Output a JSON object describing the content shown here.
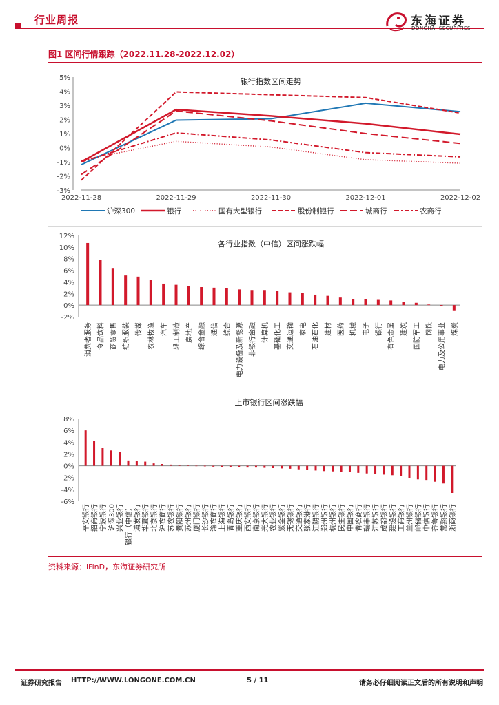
{
  "header": {
    "section": "行业周报",
    "logo_cn": "东海证券",
    "logo_en": "DONGHAI SECURITIES"
  },
  "figure": {
    "title": "图1  区间行情跟踪（2022.11.28-2022.12.02）"
  },
  "chart_data": [
    {
      "type": "line",
      "title": "银行指数区间走势",
      "categories": [
        "2022-11-28",
        "2022-11-29",
        "2022-11-30",
        "2022-12-01",
        "2022-12-02"
      ],
      "y_ticks": [
        "5%",
        "4%",
        "3%",
        "2%",
        "1%",
        "0%",
        "-1%",
        "-2%",
        "-3%"
      ],
      "ylim": [
        -3,
        5
      ],
      "series": [
        {
          "name": "沪深300",
          "color": "#1f77b4",
          "dash": "",
          "width": 2,
          "values": [
            -1.2,
            1.95,
            2.05,
            3.15,
            2.55
          ]
        },
        {
          "name": "银行",
          "color": "#d2192b",
          "dash": "",
          "width": 2.5,
          "values": [
            -1.0,
            2.7,
            2.25,
            1.7,
            0.95
          ]
        },
        {
          "name": "国有大型银行",
          "color": "#d2192b",
          "dash": "1,2.5",
          "width": 1.5,
          "values": [
            -0.9,
            0.45,
            0.05,
            -0.85,
            -1.1
          ]
        },
        {
          "name": "股份制银行",
          "color": "#d2192b",
          "dash": "6,3",
          "width": 2,
          "values": [
            -2.3,
            3.95,
            3.75,
            3.55,
            2.45
          ]
        },
        {
          "name": "城商行",
          "color": "#d2192b",
          "dash": "10,5",
          "width": 2,
          "values": [
            -1.9,
            2.6,
            1.9,
            1.0,
            0.3
          ]
        },
        {
          "name": "农商行",
          "color": "#d2192b",
          "dash": "7,3,2,3",
          "width": 2,
          "values": [
            -1.0,
            1.05,
            0.55,
            -0.35,
            -0.65
          ]
        }
      ]
    },
    {
      "type": "bar",
      "title": "各行业指数（中信）区间涨跌幅",
      "y_ticks": [
        "12%",
        "10%",
        "8%",
        "6%",
        "4%",
        "2%",
        "0%",
        "-2%"
      ],
      "ylim": [
        -2,
        12
      ],
      "categories": [
        "消费者服务",
        "食品饮料",
        "商贸零售",
        "纺织服装",
        "传媒",
        "农林牧渔",
        "汽车",
        "轻工制造",
        "房地产",
        "综合金融",
        "通信",
        "综合",
        "电力设备及新能源",
        "非银行金融",
        "计算机",
        "基础化工",
        "交通运输",
        "家电",
        "石油石化",
        "建材",
        "医药",
        "机械",
        "电子",
        "银行",
        "有色金属",
        "建筑",
        "国防军工",
        "钢铁",
        "电力及公用事业",
        "煤炭"
      ],
      "values": [
        10.7,
        7.8,
        6.4,
        5.1,
        4.9,
        4.3,
        3.7,
        3.5,
        3.3,
        3.1,
        3.0,
        2.9,
        2.7,
        2.6,
        2.6,
        2.4,
        2.2,
        2.1,
        1.8,
        1.6,
        1.3,
        1.0,
        1.0,
        0.9,
        0.8,
        0.5,
        0.4,
        0.1,
        -0.1,
        -0.9
      ],
      "color": "#d2192b"
    },
    {
      "type": "bar",
      "title": "上市银行区间涨跌幅",
      "y_ticks": [
        "8%",
        "6%",
        "4%",
        "2%",
        "0%",
        "-2%",
        "-4%",
        "-6%"
      ],
      "ylim": [
        -6,
        8
      ],
      "categories": [
        "平安银行",
        "招商银行",
        "宁波银行",
        "沪深300",
        "兴业银行",
        "银行（中信）",
        "浦发银行",
        "华夏银行",
        "北京银行",
        "沪农商行",
        "苏农银行",
        "贵阳银行",
        "苏州银行",
        "厦门银行",
        "长沙银行",
        "渝农商行",
        "上海银行",
        "青岛银行",
        "重庆银行",
        "西安银行",
        "南京银行",
        "光大银行",
        "农业银行",
        "紫金银行",
        "无锡银行",
        "交通银行",
        "张家港行",
        "江阴银行",
        "郑州银行",
        "杭州银行",
        "民生银行",
        "中国银行",
        "青农商行",
        "瑞丰银行",
        "江苏银行",
        "成都银行",
        "建设银行",
        "工商银行",
        "兰州银行",
        "邮储银行",
        "中信银行",
        "齐鲁银行",
        "常熟银行",
        "浙商银行"
      ],
      "values": [
        6.0,
        4.2,
        3.0,
        2.6,
        2.3,
        0.9,
        0.8,
        0.7,
        0.4,
        0.3,
        0.2,
        0.15,
        0.1,
        0.0,
        -0.1,
        -0.15,
        -0.2,
        -0.2,
        -0.25,
        -0.3,
        -0.3,
        -0.35,
        -0.4,
        -0.45,
        -0.5,
        -0.6,
        -0.7,
        -0.8,
        -0.9,
        -0.95,
        -1.0,
        -1.1,
        -1.2,
        -1.3,
        -1.4,
        -1.5,
        -1.6,
        -1.8,
        -2.1,
        -2.3,
        -2.4,
        -2.7,
        -3.0,
        -4.6
      ],
      "color": "#d2192b"
    }
  ],
  "source": "资料来源：iFinD，东海证券研究所",
  "footer": {
    "left": "证券研究报告",
    "url": "HTTP://WWW.LONGONE.COM.CN",
    "page": "5 / 11",
    "right": "请务必仔细阅读正文后的所有说明和声明"
  }
}
